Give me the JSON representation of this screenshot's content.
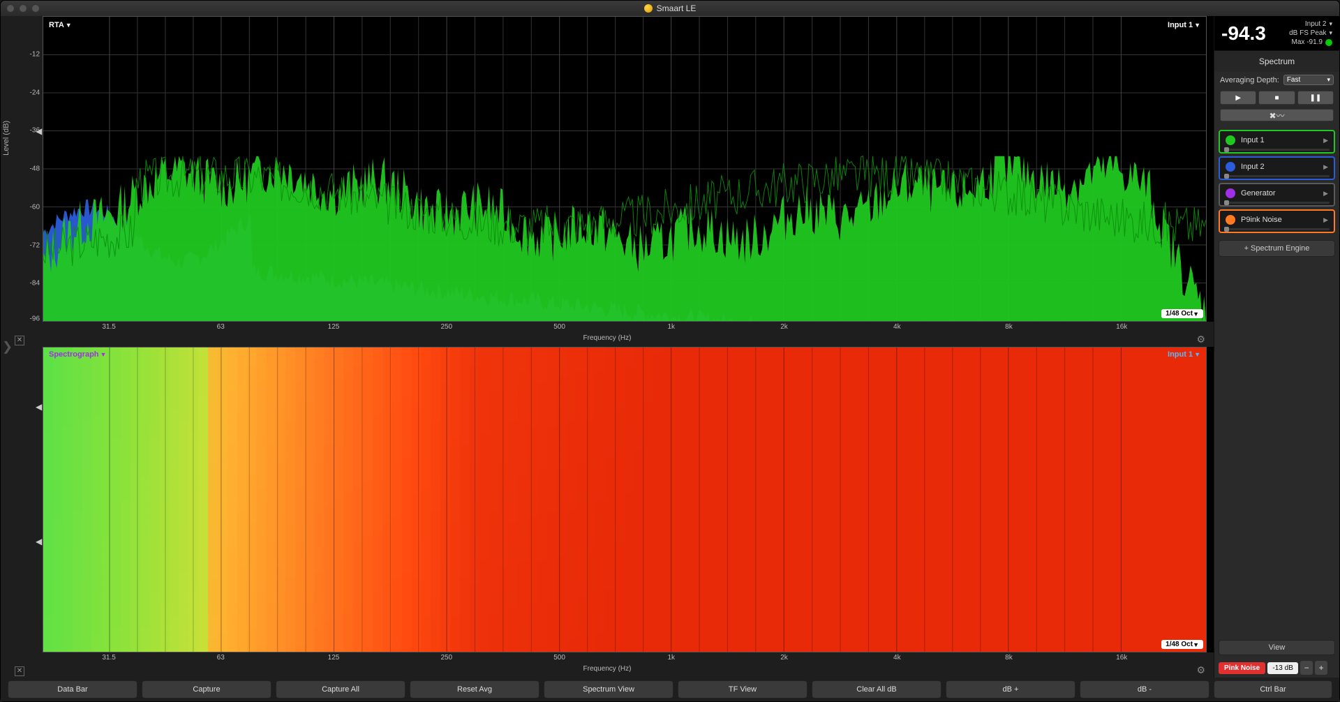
{
  "app_title": "Smaart LE",
  "rta": {
    "type": "spectrum-area",
    "title": "RTA",
    "input_label": "Input 1",
    "resolution": "1/48 Oct",
    "ylabel": "Level (dB)",
    "xlabel": "Frequency (Hz)",
    "ylim": [
      -100,
      0
    ],
    "yticks": [
      -12,
      -24,
      -36,
      -48,
      -60,
      -72,
      -84,
      -96
    ],
    "xticks": [
      "31.5",
      "63",
      "125",
      "250",
      "500",
      "1k",
      "2k",
      "4k",
      "8k",
      "16k"
    ],
    "xtick_pos_pct": [
      5.7,
      15.3,
      25,
      34.7,
      44.4,
      54,
      63.7,
      73.4,
      83,
      92.7
    ],
    "series": [
      {
        "name": "Input 2",
        "color": "#2b5cd9",
        "fill": "#2b5cd9"
      },
      {
        "name": "Input 1",
        "color": "#0c8f0c",
        "fill": "#21c821"
      }
    ],
    "background": "#000000",
    "grid_color": "#333333"
  },
  "spectrograph": {
    "type": "spectrograph",
    "title": "Spectrograph",
    "input_label": "Input 1",
    "resolution": "1/48 Oct",
    "xlabel": "Frequency (Hz)",
    "xticks": [
      "31.5",
      "63",
      "125",
      "250",
      "500",
      "1k",
      "2k",
      "4k",
      "8k",
      "16k"
    ],
    "xtick_pos_pct": [
      5.7,
      15.3,
      25,
      34.7,
      44.4,
      54,
      63.7,
      73.4,
      83,
      92.7
    ],
    "colormap": [
      "#4be04b",
      "#8be23a",
      "#d9e038",
      "#ffb030",
      "#ff7a20",
      "#ff4a10",
      "#e82a08"
    ],
    "background": "#000000"
  },
  "meter": {
    "value": "-94.3",
    "input": "Input 2",
    "mode": "dB FS Peak",
    "max": "Max -91.9",
    "led_color": "#21c821"
  },
  "spectrum_panel": {
    "title": "Spectrum",
    "avg_label": "Averaging Depth:",
    "avg_value": "Fast",
    "inputs": [
      {
        "label": "Input 1",
        "color": "#21c821",
        "border": "#21c821",
        "active": true
      },
      {
        "label": "Input 2",
        "color": "#2b5cd9",
        "border": "#2b5cd9",
        "active": false
      },
      {
        "label": "Generator",
        "color": "#a030e8",
        "border": "#5a5a5a",
        "active": false
      },
      {
        "label": "P9ink Noise",
        "color": "#ff7a20",
        "border": "#ff7a20",
        "active": false
      }
    ],
    "add_engine": "+ Spectrum Engine"
  },
  "view_btn": "View",
  "noise": {
    "pink": "Pink Noise",
    "db": "-13 dB"
  },
  "footer": [
    "Data Bar",
    "Capture",
    "Capture All",
    "Reset Avg",
    "Spectrum View",
    "TF View",
    "Clear All dB",
    "dB +",
    "dB -",
    "Ctrl Bar"
  ]
}
